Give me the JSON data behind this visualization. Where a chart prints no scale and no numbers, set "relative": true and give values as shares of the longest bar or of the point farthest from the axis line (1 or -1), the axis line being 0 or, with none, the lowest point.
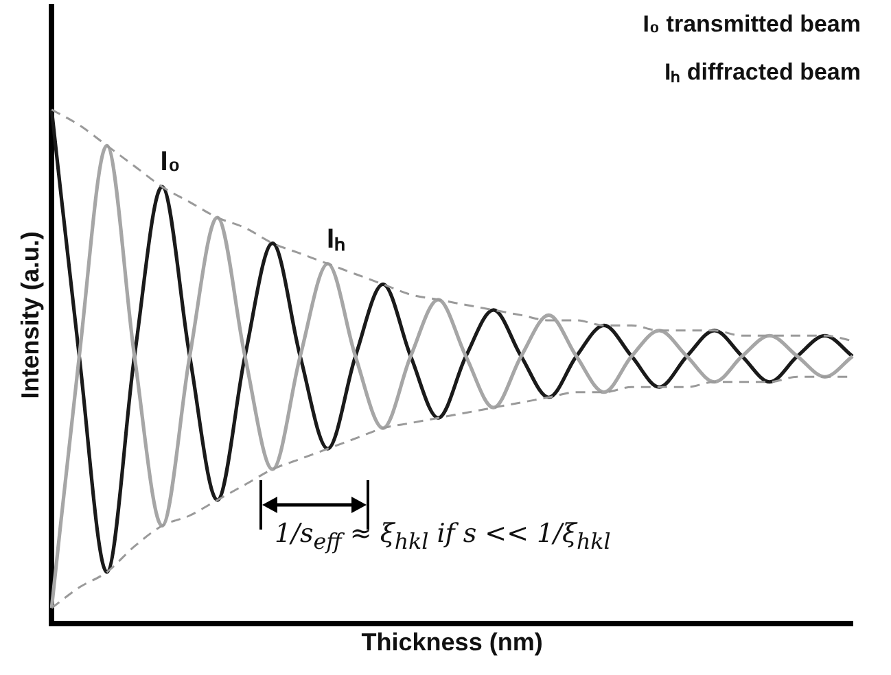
{
  "chart_data": {
    "type": "line",
    "relative": true,
    "xlabel": "Thickness (nm)",
    "ylabel": "Intensity (a.u.)",
    "categories": [
      null,
      null,
      null,
      null,
      null,
      null,
      null,
      null,
      null,
      null,
      null,
      null,
      null,
      null,
      null,
      null,
      null,
      null,
      null,
      null,
      null,
      null,
      null,
      null,
      null,
      null,
      null,
      null,
      null,
      null
    ],
    "series": [
      {
        "name": "I₀",
        "color": "#1a1a1a",
        "values": [
          1,
          0.52,
          0.1,
          0.52,
          0.85,
          0.52,
          0.24,
          0.52,
          0.74,
          0.52,
          0.34,
          0.52,
          0.66,
          0.52,
          0.4,
          0.52,
          0.61,
          0.52,
          0.44,
          0.52,
          0.58,
          0.52,
          0.46,
          0.52,
          0.57,
          0.52,
          0.47,
          0.52,
          0.56,
          0.52
        ]
      },
      {
        "name": "Iₕ",
        "color": "#a6a6a6",
        "values": [
          0.03,
          0.52,
          0.93,
          0.52,
          0.19,
          0.52,
          0.79,
          0.52,
          0.3,
          0.52,
          0.7,
          0.52,
          0.38,
          0.52,
          0.63,
          0.52,
          0.42,
          0.52,
          0.6,
          0.52,
          0.45,
          0.52,
          0.57,
          0.52,
          0.47,
          0.52,
          0.56,
          0.52,
          0.48,
          0.52
        ]
      },
      {
        "color": "#9a9a9a",
        "line_style": "dashed",
        "values": [
          1,
          0.97,
          0.93,
          0.89,
          0.85,
          0.82,
          0.79,
          0.77,
          0.74,
          0.72,
          0.7,
          0.68,
          0.66,
          0.64,
          0.63,
          0.62,
          0.61,
          0.6,
          0.59,
          0.59,
          0.58,
          0.58,
          0.57,
          0.57,
          0.57,
          0.56,
          0.56,
          0.56,
          0.56,
          0.55
        ]
      },
      {
        "color": "#9a9a9a",
        "line_style": "dashed",
        "values": [
          0.03,
          0.07,
          0.1,
          0.15,
          0.19,
          0.21,
          0.24,
          0.27,
          0.3,
          0.32,
          0.34,
          0.36,
          0.38,
          0.39,
          0.4,
          0.41,
          0.42,
          0.43,
          0.44,
          0.45,
          0.45,
          0.46,
          0.46,
          0.46,
          0.47,
          0.47,
          0.47,
          0.48,
          0.48,
          0.48
        ]
      }
    ],
    "legend": false,
    "marker": "none",
    "annotations": [
      "I₀ transmitted beam",
      "Iₕ diffracted beam",
      "1/s$_{eff}$ ≈ ξ$_{hkl}$ if s << 1/ξ$_{hkl}$"
    ]
  }
}
